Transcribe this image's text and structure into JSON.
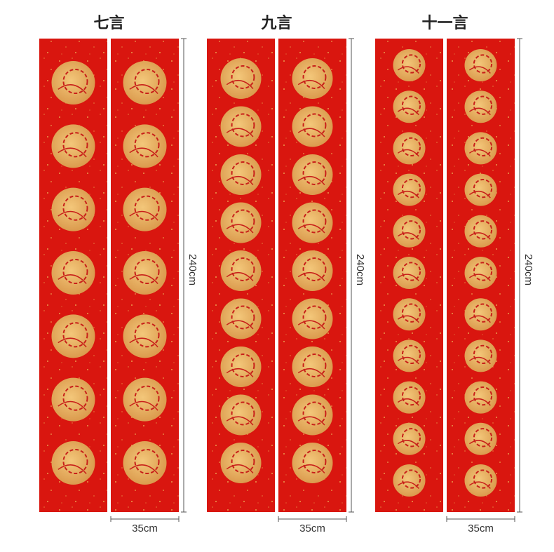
{
  "groups": [
    {
      "title": "七言",
      "height": "240cm",
      "width": "35cm"
    },
    {
      "title": "九言",
      "height": "240cm",
      "width": "35cm"
    },
    {
      "title": "十一言",
      "height": "240cm",
      "width": "35cm"
    }
  ]
}
